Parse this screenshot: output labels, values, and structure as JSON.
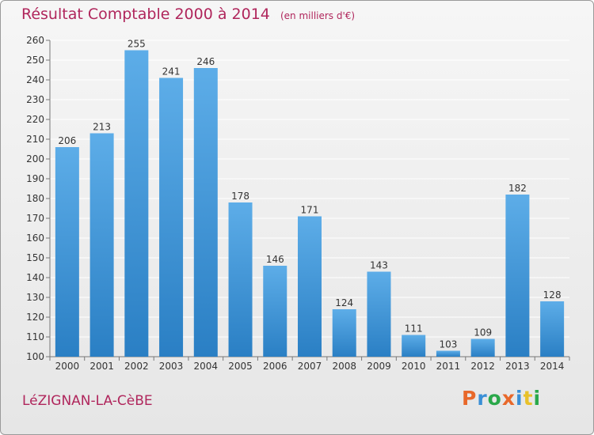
{
  "header": {
    "title": "Résultat Comptable 2000 à 2014",
    "unit": "(en milliers d'€)"
  },
  "footer": {
    "place": "LéZIGNAN-LA-CèBE",
    "brand": "Proxiti",
    "brand_colors": [
      "#e8682a",
      "#3a8fd6",
      "#2aa84a",
      "#e8682a",
      "#3a8fd6",
      "#e8c12a",
      "#2aa84a"
    ]
  },
  "colors": {
    "bar_top": "#5dade8",
    "bar_bottom": "#2a7fc4",
    "grid": "#ffffff",
    "axis_text": "#333333",
    "title": "#b0265c"
  },
  "chart_data": {
    "type": "bar",
    "categories": [
      "2000",
      "2001",
      "2002",
      "2003",
      "2004",
      "2005",
      "2006",
      "2007",
      "2008",
      "2009",
      "2010",
      "2011",
      "2012",
      "2013",
      "2014"
    ],
    "values": [
      206,
      213,
      255,
      241,
      246,
      178,
      146,
      171,
      124,
      143,
      111,
      103,
      109,
      182,
      128
    ],
    "title": "Résultat Comptable 2000 à 2014",
    "ylim": [
      100,
      260
    ],
    "yticks": [
      100,
      110,
      120,
      130,
      140,
      150,
      160,
      170,
      180,
      190,
      200,
      210,
      220,
      230,
      240,
      250,
      260
    ],
    "grid": true,
    "data_labels": true
  }
}
